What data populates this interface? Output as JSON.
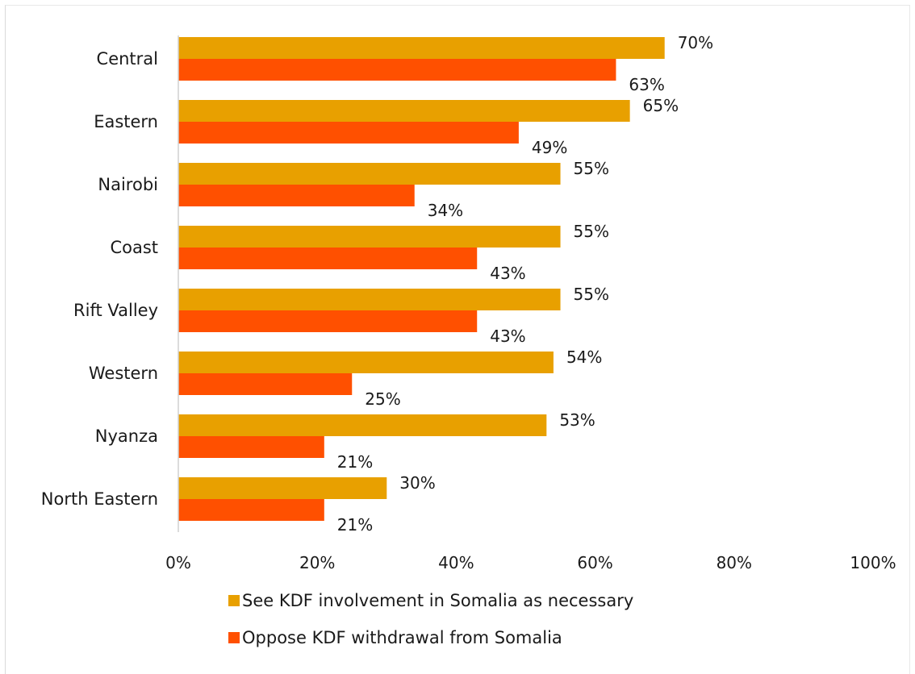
{
  "chart_data": {
    "type": "bar",
    "orientation": "horizontal",
    "title": "",
    "xlabel": "",
    "ylabel": "",
    "xlim": [
      0,
      100
    ],
    "x_ticks": [
      "0%",
      "20%",
      "40%",
      "60%",
      "80%",
      "100%"
    ],
    "grid": false,
    "legend_position": "bottom",
    "categories": [
      "Central",
      "Eastern",
      "Nairobi",
      "Coast",
      "Rift Valley",
      "Western",
      "Nyanza",
      "North Eastern"
    ],
    "series": [
      {
        "name": "See KDF involvement in Somalia as necessary",
        "color": "#E8A000",
        "values": [
          70,
          65,
          55,
          55,
          55,
          54,
          53,
          30
        ],
        "labels": [
          "70%",
          "65%",
          "55%",
          "55%",
          "55%",
          "54%",
          "53%",
          "30%"
        ]
      },
      {
        "name": "Oppose KDF withdrawal from Somalia",
        "color": "#FF5000",
        "values": [
          63,
          49,
          34,
          43,
          43,
          25,
          21,
          21
        ],
        "labels": [
          "63%",
          "49%",
          "34%",
          "43%",
          "43%",
          "25%",
          "21%",
          "21%"
        ]
      }
    ]
  }
}
